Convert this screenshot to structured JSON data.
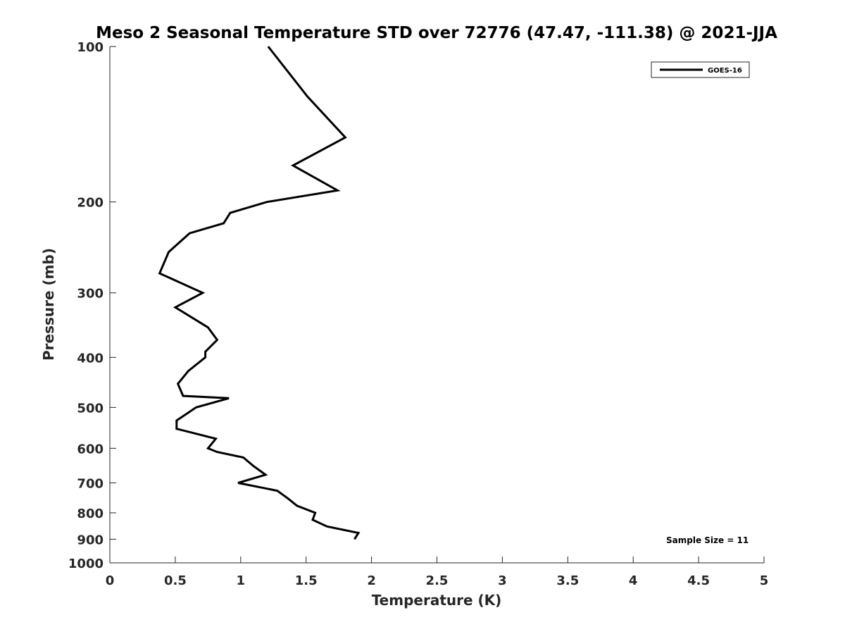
{
  "chart_data": {
    "type": "line",
    "title": "Meso 2 Seasonal Temperature STD over 72776 (47.47, -111.38) @ 2021-JJA",
    "xlabel": "Temperature (K)",
    "ylabel": "Pressure (mb)",
    "xlim": [
      0,
      5
    ],
    "ylim": [
      100,
      1000
    ],
    "y_scale": "log",
    "y_reversed": true,
    "x_ticks": [
      0,
      0.5,
      1,
      1.5,
      2,
      2.5,
      3,
      3.5,
      4,
      4.5,
      5
    ],
    "x_tick_labels": [
      "0",
      "0.5",
      "1",
      "1.5",
      "2",
      "2.5",
      "3",
      "3.5",
      "4",
      "4.5",
      "5"
    ],
    "y_ticks": [
      100,
      200,
      300,
      400,
      500,
      600,
      700,
      800,
      900,
      1000
    ],
    "y_tick_labels": [
      "100",
      "200",
      "300",
      "400",
      "500",
      "600",
      "700",
      "800",
      "900",
      "1000"
    ],
    "grid": false,
    "legend_position": "top-right",
    "series": [
      {
        "name": "GOES-16",
        "color": "#000000",
        "x": [
          1.21,
          1.51,
          1.8,
          1.4,
          1.74,
          1.2,
          0.92,
          0.87,
          0.61,
          0.45,
          0.38,
          0.71,
          0.5,
          0.75,
          0.82,
          0.73,
          0.73,
          0.6,
          0.52,
          0.56,
          0.91,
          0.66,
          0.51,
          0.51,
          0.81,
          0.75,
          0.82,
          1.02,
          1.1,
          1.19,
          0.98,
          1.28,
          1.36,
          1.43,
          1.57,
          1.55,
          1.66,
          1.9,
          1.87
        ],
        "y": [
          100,
          125,
          150,
          170,
          190,
          200,
          210,
          220,
          230,
          250,
          275,
          300,
          320,
          350,
          370,
          390,
          400,
          425,
          450,
          475,
          480,
          500,
          530,
          550,
          575,
          600,
          610,
          625,
          650,
          675,
          700,
          725,
          750,
          775,
          800,
          825,
          850,
          875,
          900
        ]
      }
    ],
    "annotation": "Sample Size = 11"
  }
}
